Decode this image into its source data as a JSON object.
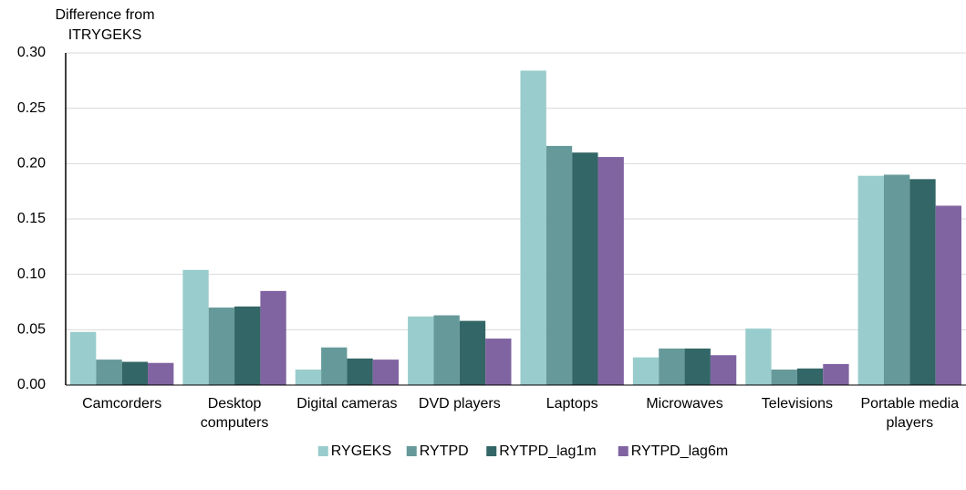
{
  "chart_data": {
    "type": "bar",
    "y_label": "Difference from ITRYGEKS",
    "categories": [
      "Camcorders",
      "Desktop computers",
      "Digital cameras",
      "DVD players",
      "Laptops",
      "Microwaves",
      "Televisions",
      "Portable media players"
    ],
    "series": [
      {
        "name": "RYGEKS",
        "color": "#99cccc",
        "values": [
          0.048,
          0.104,
          0.014,
          0.062,
          0.284,
          0.025,
          0.051,
          0.189
        ]
      },
      {
        "name": "RYTPD",
        "color": "#669999",
        "values": [
          0.023,
          0.07,
          0.034,
          0.063,
          0.216,
          0.033,
          0.014,
          0.19
        ]
      },
      {
        "name": "RYTPD_lag1m",
        "color": "#336666",
        "values": [
          0.021,
          0.071,
          0.024,
          0.058,
          0.21,
          0.033,
          0.015,
          0.186
        ]
      },
      {
        "name": "RYTPD_lag6m",
        "color": "#8064a2",
        "values": [
          0.02,
          0.085,
          0.023,
          0.042,
          0.206,
          0.027,
          0.019,
          0.162
        ]
      }
    ],
    "ylim": [
      0,
      0.3
    ],
    "yticks": [
      {
        "value": 0,
        "label": "0.00"
      },
      {
        "value": 0.05,
        "label": "0.05"
      },
      {
        "value": 0.1,
        "label": "0.10"
      },
      {
        "value": 0.15,
        "label": "0.15"
      },
      {
        "value": 0.2,
        "label": "0.20"
      },
      {
        "value": 0.25,
        "label": "0.25"
      },
      {
        "value": 0.3,
        "label": "0.30"
      }
    ],
    "grid": true
  }
}
